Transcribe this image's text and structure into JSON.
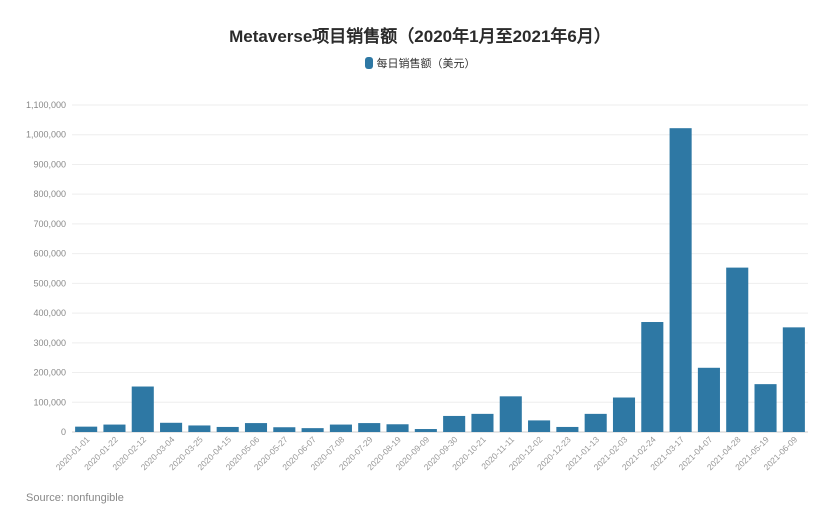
{
  "chart_data": {
    "type": "bar",
    "title": "Metaverse项目销售额（2020年1月至2021年6月）",
    "categories": [
      "2020-01-01",
      "2020-01-22",
      "2020-02-12",
      "2020-03-04",
      "2020-03-25",
      "2020-04-15",
      "2020-05-06",
      "2020-05-27",
      "2020-06-07",
      "2020-07-08",
      "2020-07-29",
      "2020-08-19",
      "2020-09-09",
      "2020-09-30",
      "2020-10-21",
      "2020-11-11",
      "2020-12-02",
      "2020-12-23",
      "2021-01-13",
      "2021-02-03",
      "2021-02-24",
      "2021-03-17",
      "2021-04-07",
      "2021-04-28",
      "2021-05-19",
      "2021-06-09"
    ],
    "series": [
      {
        "name": "每日销售额（美元）",
        "color": "#2e78a4",
        "values": [
          18000,
          25000,
          153000,
          31000,
          22000,
          17000,
          30000,
          16000,
          13000,
          25000,
          30000,
          26000,
          10000,
          54000,
          61000,
          120000,
          39000,
          17000,
          61000,
          116000,
          370000,
          1022000,
          216000,
          553000,
          161000,
          352000
        ]
      }
    ],
    "ylim": [
      0,
      1100000
    ],
    "yticks": [
      0,
      100000,
      200000,
      300000,
      400000,
      500000,
      600000,
      700000,
      800000,
      900000,
      1000000,
      1100000
    ],
    "ytick_labels": [
      "0",
      "100,000",
      "200,000",
      "300,000",
      "400,000",
      "500,000",
      "600,000",
      "700,000",
      "800,000",
      "900,000",
      "1,000,000",
      "1,100,000"
    ],
    "grid": true,
    "legend_position": "top-center",
    "source": "Source: nonfungible"
  }
}
